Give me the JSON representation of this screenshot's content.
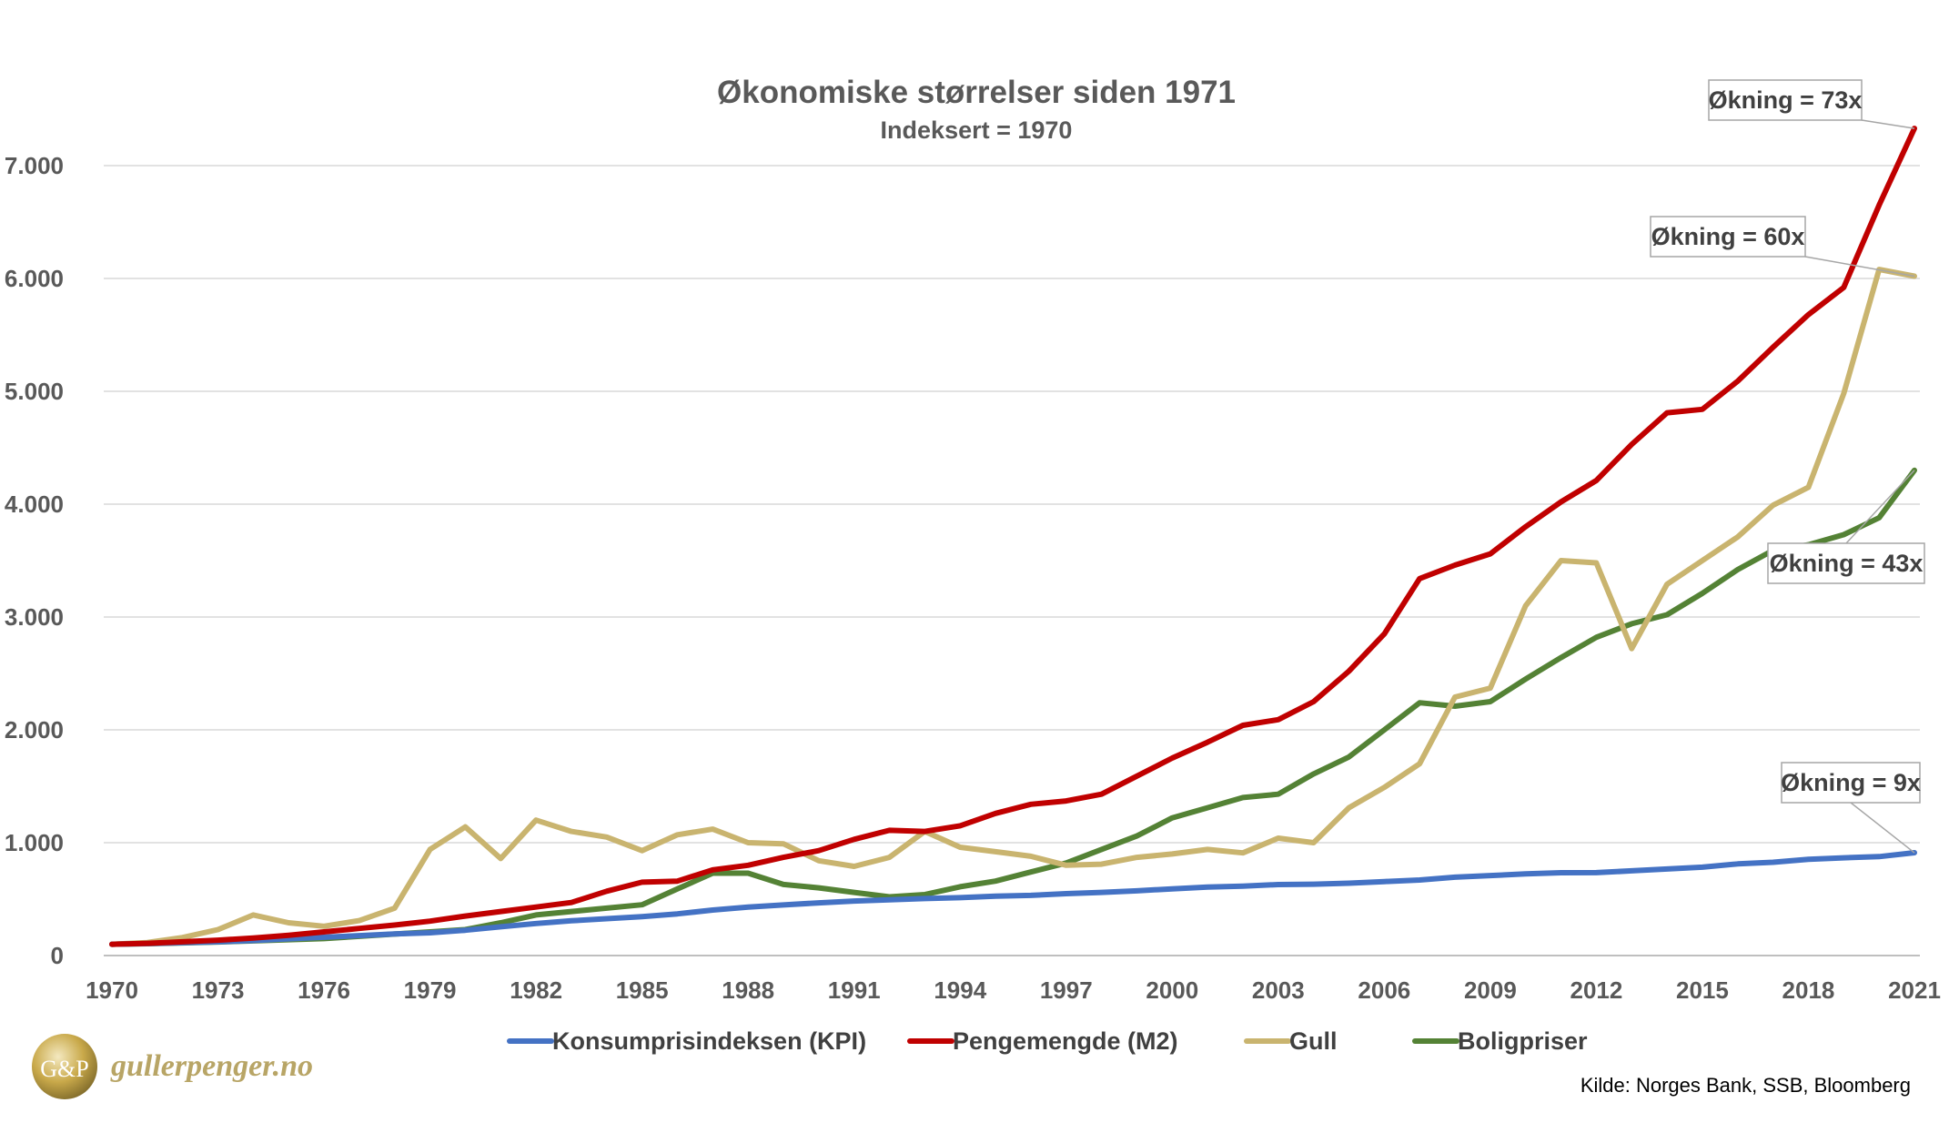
{
  "chart_data": {
    "type": "line",
    "title": "Økonomiske størrelser siden 1971",
    "subtitle": "Indeksert = 1970",
    "ylim": [
      0,
      7500
    ],
    "y_ticks": [
      0,
      1000,
      2000,
      3000,
      4000,
      5000,
      6000,
      7000
    ],
    "y_tick_labels": [
      "0",
      "1.000",
      "2.000",
      "3.000",
      "4.000",
      "5.000",
      "6.000",
      "7.000"
    ],
    "x_tick_labels": [
      "1970",
      "1973",
      "1976",
      "1979",
      "1982",
      "1985",
      "1988",
      "1991",
      "1994",
      "1997",
      "2000",
      "2003",
      "2006",
      "2009",
      "2012",
      "2015",
      "2018",
      "2021"
    ],
    "x": [
      1970,
      1971,
      1972,
      1973,
      1974,
      1975,
      1976,
      1977,
      1978,
      1979,
      1980,
      1981,
      1982,
      1983,
      1984,
      1985,
      1986,
      1987,
      1988,
      1989,
      1990,
      1991,
      1992,
      1993,
      1994,
      1995,
      1996,
      1997,
      1998,
      1999,
      2000,
      2001,
      2002,
      2003,
      2004,
      2005,
      2006,
      2007,
      2008,
      2009,
      2010,
      2011,
      2012,
      2013,
      2014,
      2015,
      2016,
      2017,
      2018,
      2019,
      2020,
      2021
    ],
    "grid": true,
    "legend_position": "bottom",
    "series": [
      {
        "name": "Konsumprisindeksen (KPI)",
        "color": "#4472c4",
        "values": [
          100,
          106,
          114,
          122,
          133,
          148,
          162,
          177,
          192,
          202,
          224,
          255,
          284,
          308,
          327,
          345,
          369,
          403,
          429,
          448,
          467,
          483,
          494,
          505,
          513,
          526,
          533,
          548,
          560,
          573,
          591,
          607,
          615,
          629,
          632,
          641,
          656,
          669,
          694,
          709,
          723,
          734,
          735,
          751,
          767,
          783,
          812,
          827,
          853,
          866,
          877,
          911
        ]
      },
      {
        "name": "Pengemengde (M2)",
        "color": "#c00000",
        "values": [
          100,
          108,
          122,
          136,
          155,
          180,
          210,
          240,
          270,
          305,
          350,
          390,
          430,
          470,
          570,
          650,
          660,
          760,
          800,
          870,
          930,
          1030,
          1110,
          1100,
          1150,
          1260,
          1340,
          1370,
          1430,
          1590,
          1750,
          1890,
          2040,
          2090,
          2250,
          2520,
          2850,
          3340,
          3460,
          3560,
          3800,
          4020,
          4210,
          4530,
          4810,
          4840,
          5090,
          5390,
          5680,
          5920,
          6650,
          7330
        ]
      },
      {
        "name": "Gull",
        "color": "#c9b46f",
        "values": [
          100,
          115,
          160,
          230,
          360,
          290,
          260,
          310,
          420,
          940,
          1140,
          860,
          1200,
          1100,
          1050,
          930,
          1070,
          1120,
          1000,
          990,
          840,
          790,
          870,
          1100,
          960,
          920,
          880,
          800,
          810,
          870,
          900,
          940,
          910,
          1040,
          1000,
          1310,
          1490,
          1700,
          2290,
          2370,
          3100,
          3500,
          3480,
          2720,
          3290,
          3500,
          3710,
          3990,
          4150,
          4980,
          6080,
          6020
        ]
      },
      {
        "name": "Boligpriser",
        "color": "#548235",
        "values": [
          100,
          105,
          112,
          120,
          130,
          140,
          150,
          170,
          190,
          210,
          230,
          290,
          360,
          390,
          420,
          450,
          590,
          730,
          730,
          630,
          600,
          560,
          520,
          540,
          610,
          660,
          740,
          820,
          940,
          1060,
          1220,
          1310,
          1400,
          1430,
          1610,
          1760,
          2000,
          2240,
          2210,
          2250,
          2450,
          2640,
          2820,
          2940,
          3020,
          3210,
          3420,
          3590,
          3640,
          3730,
          3880,
          4300
        ]
      }
    ],
    "annotations": [
      {
        "label": "Økning = 73x",
        "series": "Pengemengde (M2)"
      },
      {
        "label": "Økning = 60x",
        "series": "Gull"
      },
      {
        "label": "Økning = 43x",
        "series": "Boligpriser"
      },
      {
        "label": "Økning = 9x",
        "series": "Konsumprisindeksen (KPI)"
      }
    ],
    "source": "Kilde: Norges Bank, SSB, Bloomberg"
  },
  "logo": {
    "monogram": "G&P",
    "text": "gullerpenger.no"
  }
}
